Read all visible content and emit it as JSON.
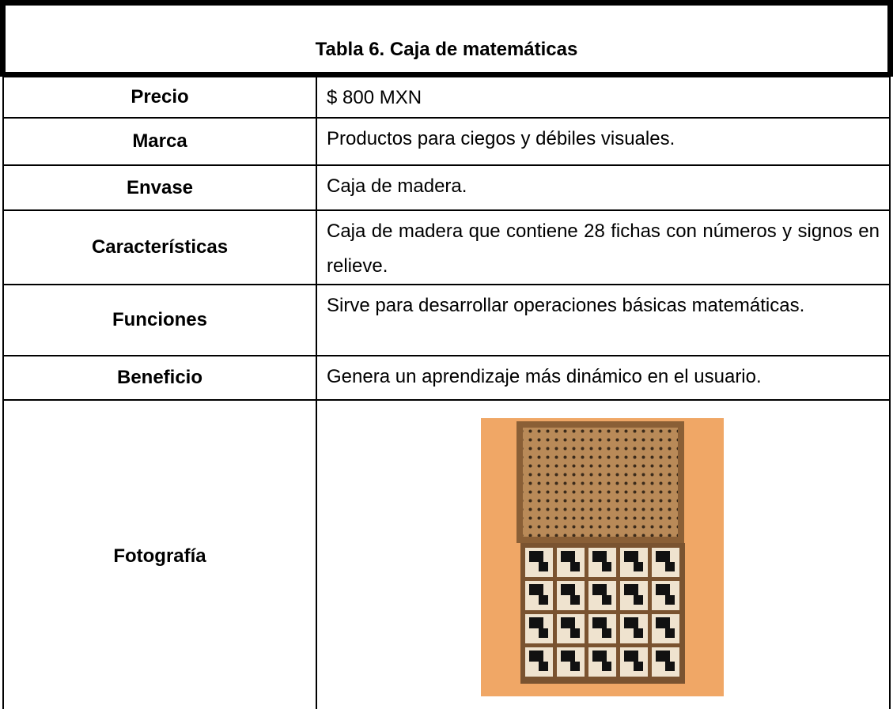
{
  "table": {
    "title": "Tabla 6. Caja de matemáticas",
    "rows": [
      [
        "Precio",
        "$ 800 MXN"
      ],
      [
        "Marca",
        "Productos para ciegos y débiles visuales."
      ],
      [
        "Envase",
        "Caja de madera."
      ],
      [
        "Características",
        "Caja de madera que contiene 28 fichas con números y signos en relieve."
      ],
      [
        "Funciones",
        "Sirve para desarrollar operaciones básicas matemáticas."
      ],
      [
        "Beneficio",
        "Genera un aprendizaje más dinámico en el usuario."
      ],
      [
        "Fotografía"
      ]
    ]
  }
}
